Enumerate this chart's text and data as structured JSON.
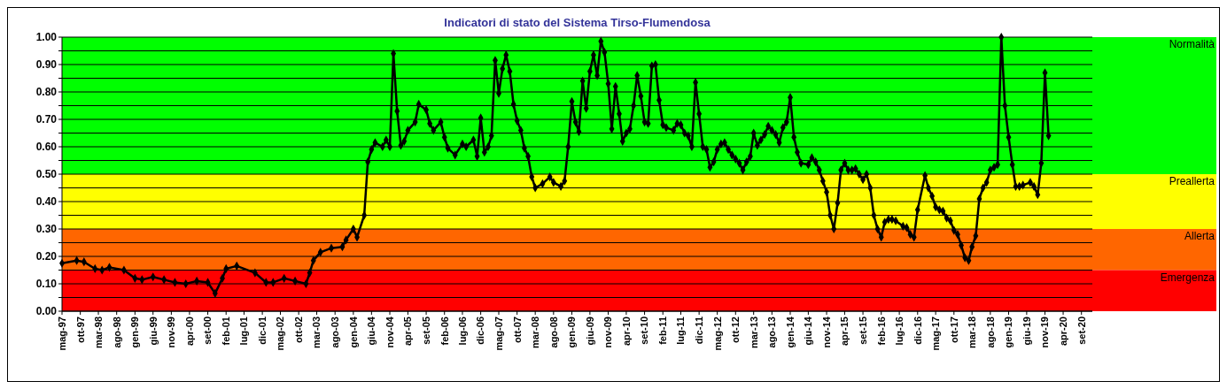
{
  "chart_data": {
    "type": "line",
    "title": "Indicatori di stato del Sistema Tirso-Flumendosa",
    "x": [
      "1997-05",
      "1997-09",
      "1997-11",
      "1998-02",
      "1998-04",
      "1998-06",
      "1998-10",
      "1999-01",
      "1999-03",
      "1999-06",
      "1999-09",
      "1999-12",
      "2000-03",
      "2000-06",
      "2000-09",
      "2000-11",
      "2001-01",
      "2001-02",
      "2001-05",
      "2001-10",
      "2002-01",
      "2002-03",
      "2002-06",
      "2002-09",
      "2002-12",
      "2003-01",
      "2003-02",
      "2003-04",
      "2003-07",
      "2003-10",
      "2003-11",
      "2004-01",
      "2004-02",
      "2004-04",
      "2004-05",
      "2004-06",
      "2004-07",
      "2004-09",
      "2004-10",
      "2004-11",
      "2004-12",
      "2005-01",
      "2005-02",
      "2005-03",
      "2005-04",
      "2005-06",
      "2005-07",
      "2005-09",
      "2005-10",
      "2005-11",
      "2006-01",
      "2006-02",
      "2006-03",
      "2006-05",
      "2006-07",
      "2006-08",
      "2006-10",
      "2006-11",
      "2006-12",
      "2007-01",
      "2007-02",
      "2007-03",
      "2007-04",
      "2007-05",
      "2007-06",
      "2007-07",
      "2007-08",
      "2007-09",
      "2007-10",
      "2007-11",
      "2007-12",
      "2008-01",
      "2008-02",
      "2008-03",
      "2008-05",
      "2008-07",
      "2008-08",
      "2008-10",
      "2008-11",
      "2008-12",
      "2009-01",
      "2009-02",
      "2009-03",
      "2009-04",
      "2009-05",
      "2009-06",
      "2009-07",
      "2009-08",
      "2009-09",
      "2009-10",
      "2009-11",
      "2009-12",
      "2010-01",
      "2010-02",
      "2010-03",
      "2010-04",
      "2010-05",
      "2010-06",
      "2010-07",
      "2010-08",
      "2010-09",
      "2010-10",
      "2010-11",
      "2010-12",
      "2011-01",
      "2011-02",
      "2011-03",
      "2011-05",
      "2011-06",
      "2011-07",
      "2011-08",
      "2011-09",
      "2011-10",
      "2011-11",
      "2011-12",
      "2012-01",
      "2012-02",
      "2012-03",
      "2012-04",
      "2012-05",
      "2012-06",
      "2012-07",
      "2012-08",
      "2012-09",
      "2012-10",
      "2012-11",
      "2012-12",
      "2013-01",
      "2013-02",
      "2013-03",
      "2013-04",
      "2013-05",
      "2013-06",
      "2013-07",
      "2013-08",
      "2013-09",
      "2013-10",
      "2013-11",
      "2013-12",
      "2014-01",
      "2014-02",
      "2014-03",
      "2014-04",
      "2014-06",
      "2014-07",
      "2014-08",
      "2014-09",
      "2014-10",
      "2014-11",
      "2014-12",
      "2015-01",
      "2015-02",
      "2015-03",
      "2015-04",
      "2015-05",
      "2015-06",
      "2015-07",
      "2015-08",
      "2015-09",
      "2015-10",
      "2015-11",
      "2015-12",
      "2016-01",
      "2016-02",
      "2016-03",
      "2016-04",
      "2016-05",
      "2016-06",
      "2016-08",
      "2016-09",
      "2016-10",
      "2016-11",
      "2016-12",
      "2017-02",
      "2017-03",
      "2017-04",
      "2017-05",
      "2017-06",
      "2017-07",
      "2017-08",
      "2017-09",
      "2017-10",
      "2017-11",
      "2017-12",
      "2018-01",
      "2018-02",
      "2018-03",
      "2018-04",
      "2018-05",
      "2018-06",
      "2018-07",
      "2018-08",
      "2018-09",
      "2018-10",
      "2018-11",
      "2018-12",
      "2019-01",
      "2019-02",
      "2019-03",
      "2019-04",
      "2019-05",
      "2019-07",
      "2019-08",
      "2019-09",
      "2019-10",
      "2019-11",
      "2019-12"
    ],
    "series": [
      {
        "color": "#000000",
        "values": [
          0.175,
          0.185,
          0.18,
          0.155,
          0.15,
          0.16,
          0.15,
          0.12,
          0.115,
          0.125,
          0.115,
          0.105,
          0.1,
          0.11,
          0.105,
          0.065,
          0.12,
          0.155,
          0.165,
          0.14,
          0.105,
          0.105,
          0.12,
          0.11,
          0.1,
          0.14,
          0.185,
          0.215,
          0.23,
          0.235,
          0.26,
          0.3,
          0.27,
          0.35,
          0.545,
          0.59,
          0.615,
          0.6,
          0.625,
          0.6,
          0.94,
          0.73,
          0.605,
          0.62,
          0.66,
          0.69,
          0.755,
          0.735,
          0.685,
          0.66,
          0.69,
          0.635,
          0.595,
          0.57,
          0.61,
          0.6,
          0.625,
          0.565,
          0.705,
          0.58,
          0.6,
          0.64,
          0.915,
          0.795,
          0.885,
          0.935,
          0.875,
          0.755,
          0.695,
          0.66,
          0.595,
          0.565,
          0.49,
          0.45,
          0.465,
          0.49,
          0.47,
          0.455,
          0.475,
          0.6,
          0.765,
          0.69,
          0.655,
          0.84,
          0.74,
          0.875,
          0.935,
          0.86,
          0.985,
          0.945,
          0.83,
          0.665,
          0.82,
          0.72,
          0.62,
          0.65,
          0.665,
          0.75,
          0.86,
          0.785,
          0.69,
          0.685,
          0.895,
          0.9,
          0.77,
          0.68,
          0.67,
          0.66,
          0.685,
          0.68,
          0.65,
          0.64,
          0.6,
          0.835,
          0.72,
          0.6,
          0.59,
          0.525,
          0.545,
          0.59,
          0.61,
          0.615,
          0.59,
          0.57,
          0.555,
          0.54,
          0.515,
          0.545,
          0.565,
          0.65,
          0.605,
          0.625,
          0.645,
          0.675,
          0.66,
          0.645,
          0.615,
          0.67,
          0.69,
          0.78,
          0.635,
          0.58,
          0.54,
          0.535,
          0.56,
          0.545,
          0.515,
          0.475,
          0.435,
          0.35,
          0.3,
          0.395,
          0.515,
          0.54,
          0.515,
          0.515,
          0.52,
          0.5,
          0.48,
          0.5,
          0.45,
          0.35,
          0.3,
          0.27,
          0.325,
          0.335,
          0.335,
          0.33,
          0.31,
          0.305,
          0.28,
          0.27,
          0.37,
          0.495,
          0.45,
          0.42,
          0.38,
          0.37,
          0.365,
          0.34,
          0.33,
          0.295,
          0.28,
          0.24,
          0.195,
          0.185,
          0.235,
          0.275,
          0.41,
          0.45,
          0.47,
          0.515,
          0.525,
          0.535,
          1.0,
          0.75,
          0.635,
          0.535,
          0.455,
          0.455,
          0.46,
          0.47,
          0.455,
          0.425,
          0.54,
          0.87,
          0.64
        ]
      }
    ],
    "xlim": [
      "1997-05",
      "2020-12"
    ],
    "xticks": [
      {
        "value": "1997-05",
        "label": "mag-97"
      },
      {
        "value": "1997-10",
        "label": "ott-97"
      },
      {
        "value": "1998-03",
        "label": "mar-98"
      },
      {
        "value": "1998-08",
        "label": "ago-98"
      },
      {
        "value": "1999-01",
        "label": "gen-99"
      },
      {
        "value": "1999-06",
        "label": "giu-99"
      },
      {
        "value": "1999-11",
        "label": "nov-99"
      },
      {
        "value": "2000-04",
        "label": "apr-00"
      },
      {
        "value": "2000-09",
        "label": "set-00"
      },
      {
        "value": "2001-02",
        "label": "feb-01"
      },
      {
        "value": "2001-07",
        "label": "lug-01"
      },
      {
        "value": "2001-12",
        "label": "dic-01"
      },
      {
        "value": "2002-05",
        "label": "mag-02"
      },
      {
        "value": "2002-10",
        "label": "ott-02"
      },
      {
        "value": "2003-03",
        "label": "mar-03"
      },
      {
        "value": "2003-08",
        "label": "ago-03"
      },
      {
        "value": "2004-01",
        "label": "gen-04"
      },
      {
        "value": "2004-06",
        "label": "giu-04"
      },
      {
        "value": "2004-11",
        "label": "nov-04"
      },
      {
        "value": "2005-04",
        "label": "apr-05"
      },
      {
        "value": "2005-09",
        "label": "set-05"
      },
      {
        "value": "2006-02",
        "label": "feb-06"
      },
      {
        "value": "2006-07",
        "label": "lug-06"
      },
      {
        "value": "2006-12",
        "label": "dic-06"
      },
      {
        "value": "2007-05",
        "label": "mag-07"
      },
      {
        "value": "2007-10",
        "label": "ott-07"
      },
      {
        "value": "2008-03",
        "label": "mar-08"
      },
      {
        "value": "2008-08",
        "label": "ago-08"
      },
      {
        "value": "2009-01",
        "label": "gen-09"
      },
      {
        "value": "2009-06",
        "label": "giu-09"
      },
      {
        "value": "2009-11",
        "label": "nov-09"
      },
      {
        "value": "2010-04",
        "label": "apr-10"
      },
      {
        "value": "2010-09",
        "label": "set-10"
      },
      {
        "value": "2011-02",
        "label": "feb-11"
      },
      {
        "value": "2011-07",
        "label": "lug-11"
      },
      {
        "value": "2011-12",
        "label": "dic-11"
      },
      {
        "value": "2012-05",
        "label": "mag-12"
      },
      {
        "value": "2012-10",
        "label": "ott-12"
      },
      {
        "value": "2013-03",
        "label": "mar-13"
      },
      {
        "value": "2013-08",
        "label": "ago-13"
      },
      {
        "value": "2014-01",
        "label": "gen-14"
      },
      {
        "value": "2014-06",
        "label": "giu-14"
      },
      {
        "value": "2014-11",
        "label": "nov-14"
      },
      {
        "value": "2015-04",
        "label": "apr-15"
      },
      {
        "value": "2015-09",
        "label": "set-15"
      },
      {
        "value": "2016-02",
        "label": "feb-16"
      },
      {
        "value": "2016-07",
        "label": "lug-16"
      },
      {
        "value": "2016-12",
        "label": "dic-16"
      },
      {
        "value": "2017-05",
        "label": "mag-17"
      },
      {
        "value": "2017-10",
        "label": "ott-17"
      },
      {
        "value": "2018-03",
        "label": "mar-18"
      },
      {
        "value": "2018-08",
        "label": "ago-18"
      },
      {
        "value": "2019-01",
        "label": "gen-19"
      },
      {
        "value": "2019-06",
        "label": "giu-19"
      },
      {
        "value": "2019-11",
        "label": "nov-19"
      },
      {
        "value": "2020-04",
        "label": "apr-20"
      },
      {
        "value": "2020-09",
        "label": "set-20"
      }
    ],
    "ylim": [
      0,
      1
    ],
    "yticks": [
      {
        "value": 0,
        "label": "0.00"
      },
      {
        "value": 0.05,
        "label": null
      },
      {
        "value": 0.1,
        "label": "0.10"
      },
      {
        "value": 0.15,
        "label": null
      },
      {
        "value": 0.2,
        "label": "0.20"
      },
      {
        "value": 0.25,
        "label": null
      },
      {
        "value": 0.3,
        "label": "0.30"
      },
      {
        "value": 0.35,
        "label": null
      },
      {
        "value": 0.4,
        "label": "0.40"
      },
      {
        "value": 0.45,
        "label": null
      },
      {
        "value": 0.5,
        "label": "0.50"
      },
      {
        "value": 0.55,
        "label": null
      },
      {
        "value": 0.6,
        "label": "0.60"
      },
      {
        "value": 0.65,
        "label": null
      },
      {
        "value": 0.7,
        "label": "0.70"
      },
      {
        "value": 0.75,
        "label": null
      },
      {
        "value": 0.8,
        "label": "0.80"
      },
      {
        "value": 0.85,
        "label": null
      },
      {
        "value": 0.9,
        "label": "0.90"
      },
      {
        "value": 0.95,
        "label": null
      },
      {
        "value": 1,
        "label": "1.00"
      }
    ],
    "bands": [
      {
        "axis": "y",
        "from": 0.5,
        "to": 1,
        "label": "Normalità",
        "color": "#00ff00"
      },
      {
        "axis": "y",
        "from": 0.3,
        "to": 0.5,
        "label": "Preallerta",
        "color": "#ffff00"
      },
      {
        "axis": "y",
        "from": 0.15,
        "to": 0.3,
        "label": "Allerta",
        "color": "#ff6600"
      },
      {
        "axis": "y",
        "from": 0,
        "to": 0.15,
        "label": "Emergenza",
        "color": "#ff0000"
      }
    ],
    "grid": "y",
    "marker": "diamond",
    "line_style": "solid"
  }
}
